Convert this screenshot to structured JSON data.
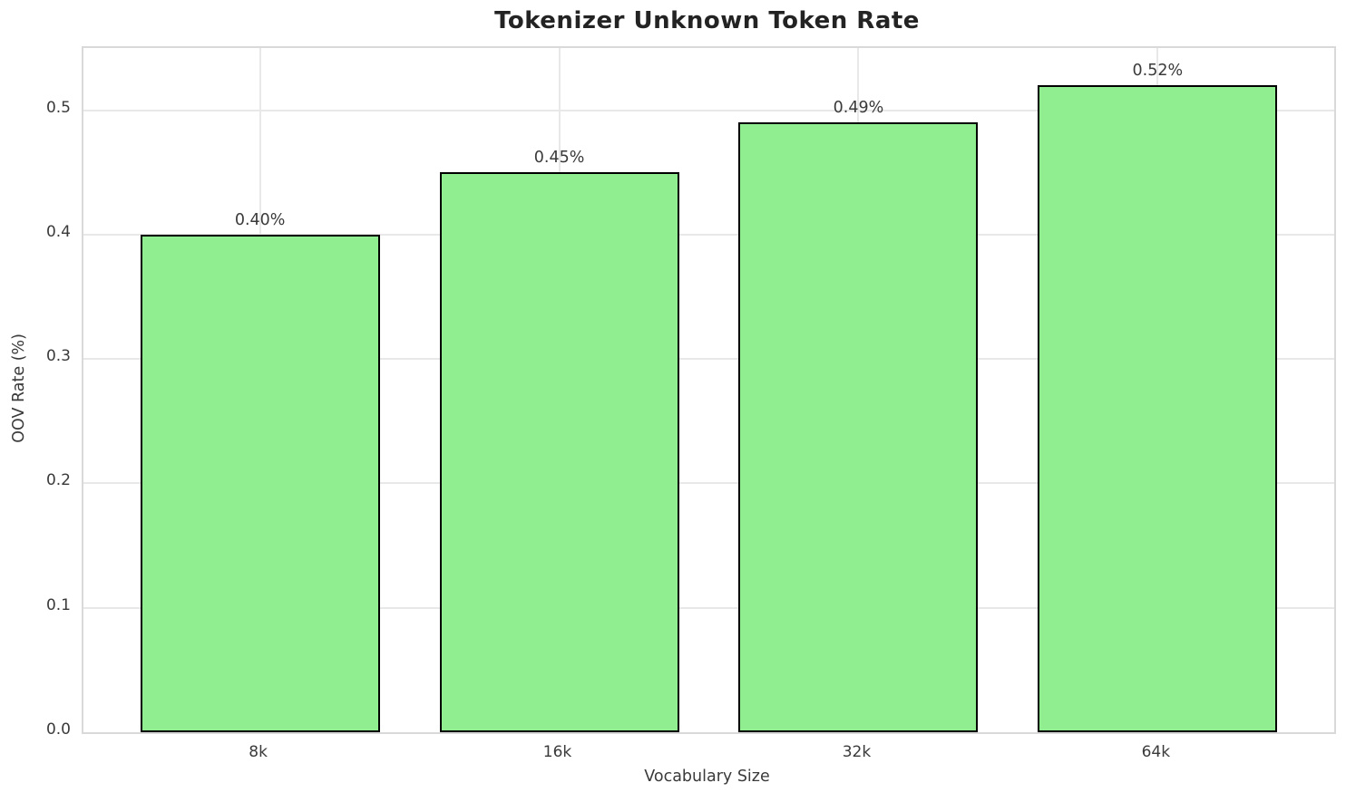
{
  "chart_data": {
    "type": "bar",
    "title": "Tokenizer Unknown Token Rate",
    "xlabel": "Vocabulary Size",
    "ylabel": "OOV Rate (%)",
    "categories": [
      "8k",
      "16k",
      "32k",
      "64k"
    ],
    "values": [
      0.4,
      0.45,
      0.49,
      0.52
    ],
    "bar_labels": [
      "0.40%",
      "0.45%",
      "0.49%",
      "0.52%"
    ],
    "y_ticks": [
      0.0,
      0.1,
      0.2,
      0.3,
      0.4,
      0.5
    ],
    "y_tick_labels": [
      "0.0",
      "0.1",
      "0.2",
      "0.3",
      "0.4",
      "0.5"
    ],
    "ylim": [
      0,
      0.55
    ],
    "grid": true,
    "legend": "none",
    "colors": {
      "bar_fill": "#90EE90",
      "bar_edge": "#000000",
      "grid_line": "#e8e8e8",
      "spine": "#d9d9d9",
      "tick_text": "#3a3a3a",
      "title_text": "#232323",
      "background": "#ffffff"
    }
  }
}
